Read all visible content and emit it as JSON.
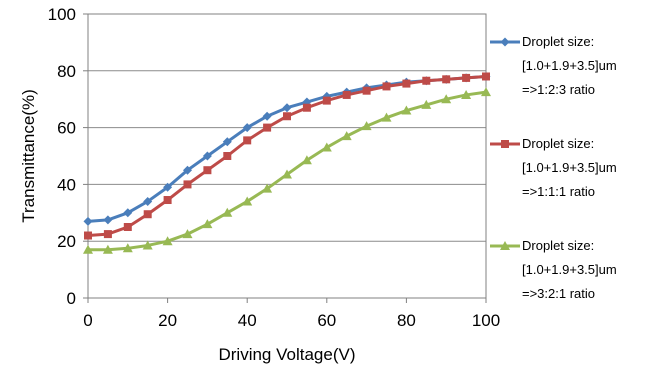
{
  "chart_data": {
    "type": "line",
    "xlabel": "Driving Voltage(V)",
    "ylabel": "Transmittance(%)",
    "xlim": [
      0,
      100
    ],
    "ylim": [
      0,
      100
    ],
    "xticks": [
      0,
      20,
      40,
      60,
      80,
      100
    ],
    "yticks": [
      0,
      20,
      40,
      60,
      80,
      100
    ],
    "xtick_labels": [
      "0",
      "20",
      "40",
      "60",
      "80",
      "100"
    ],
    "ytick_labels": [
      "0",
      "20",
      "40",
      "60",
      "80",
      "100"
    ],
    "grid": "horizontal",
    "legend_position": "right",
    "x": [
      0,
      5,
      10,
      15,
      20,
      25,
      30,
      35,
      40,
      45,
      50,
      55,
      60,
      65,
      70,
      75,
      80,
      85,
      90,
      95,
      100
    ],
    "series": [
      {
        "name_lines": [
          "Droplet size:",
          "[1.0+1.9+3.5]um",
          "=>1:2:3 ratio"
        ],
        "color": "#4a7ebb",
        "marker": "diamond",
        "values": [
          27,
          27.5,
          30,
          34,
          39,
          45,
          50,
          55,
          60,
          64,
          67,
          69,
          71,
          72.5,
          74,
          75,
          76,
          76.5,
          77,
          77.5,
          78
        ]
      },
      {
        "name_lines": [
          "Droplet size:",
          "[1.0+1.9+3.5]um",
          "=>1:1:1 ratio"
        ],
        "color": "#be4b48",
        "marker": "square",
        "values": [
          22,
          22.5,
          25,
          29.5,
          34.5,
          40,
          45,
          50,
          55.5,
          60,
          64,
          67,
          69.5,
          71.5,
          73,
          74.5,
          75.5,
          76.5,
          77,
          77.5,
          78
        ]
      },
      {
        "name_lines": [
          "Droplet size:",
          "[1.0+1.9+3.5]um",
          "=>3:2:1 ratio"
        ],
        "color": "#98b954",
        "marker": "triangle",
        "values": [
          17,
          17,
          17.5,
          18.5,
          20,
          22.5,
          26,
          30,
          34,
          38.5,
          43.5,
          48.5,
          53,
          57,
          60.5,
          63.5,
          66,
          68,
          70,
          71.5,
          72.5
        ]
      }
    ]
  }
}
